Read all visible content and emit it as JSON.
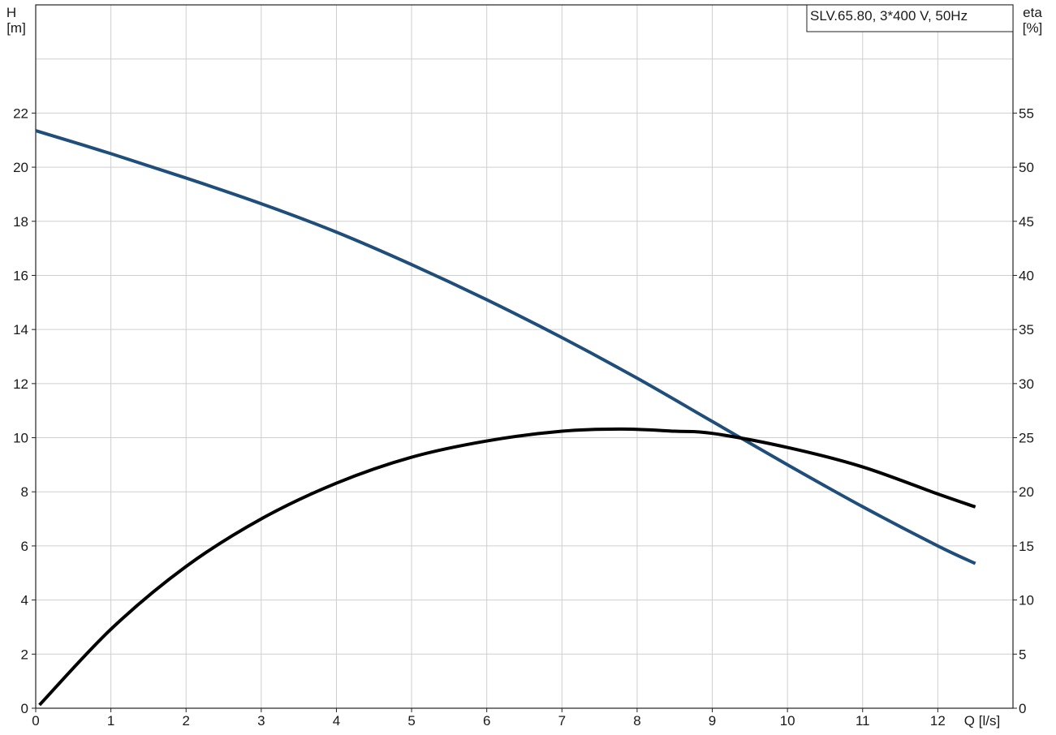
{
  "chart_data": {
    "type": "line",
    "legend_box": "SLV.65.80, 3*400 V, 50Hz",
    "legend_position": "top-right",
    "grid": true,
    "x_axis": {
      "label": "Q [l/s]",
      "range": [
        0,
        13
      ],
      "ticks": [
        0,
        1,
        2,
        3,
        4,
        5,
        6,
        7,
        8,
        9,
        10,
        11,
        12
      ]
    },
    "y_axis_left": {
      "label_line1": "H",
      "label_line2": "[m]",
      "range": [
        0,
        26
      ],
      "ticks": [
        0,
        2,
        4,
        6,
        8,
        10,
        12,
        14,
        16,
        18,
        20,
        22
      ]
    },
    "y_axis_right": {
      "label_line1": "eta",
      "label_line2": "[%]",
      "range": [
        0,
        65
      ],
      "ticks": [
        0,
        5,
        10,
        15,
        20,
        25,
        30,
        35,
        40,
        45,
        50,
        55
      ]
    },
    "series": [
      {
        "id": "head",
        "axis": "left",
        "color": "#1f4e7a",
        "points": [
          [
            0,
            21.35
          ],
          [
            1,
            20.5
          ],
          [
            2,
            19.6
          ],
          [
            3,
            18.65
          ],
          [
            4,
            17.6
          ],
          [
            5,
            16.4
          ],
          [
            6,
            15.1
          ],
          [
            7,
            13.7
          ],
          [
            8,
            12.2
          ],
          [
            9,
            10.6
          ],
          [
            10,
            9.0
          ],
          [
            11,
            7.45
          ],
          [
            12,
            6.0
          ],
          [
            12.5,
            5.35
          ]
        ]
      },
      {
        "id": "efficiency",
        "axis": "right",
        "color": "#000000",
        "points": [
          [
            0.05,
            0.3
          ],
          [
            1,
            7.3
          ],
          [
            2,
            13.1
          ],
          [
            3,
            17.5
          ],
          [
            4,
            20.8
          ],
          [
            5,
            23.2
          ],
          [
            6,
            24.7
          ],
          [
            7,
            25.6
          ],
          [
            7.8,
            25.8
          ],
          [
            8.5,
            25.6
          ],
          [
            9,
            25.4
          ],
          [
            10,
            24.1
          ],
          [
            11,
            22.3
          ],
          [
            12,
            19.8
          ],
          [
            12.5,
            18.6
          ]
        ]
      }
    ]
  }
}
